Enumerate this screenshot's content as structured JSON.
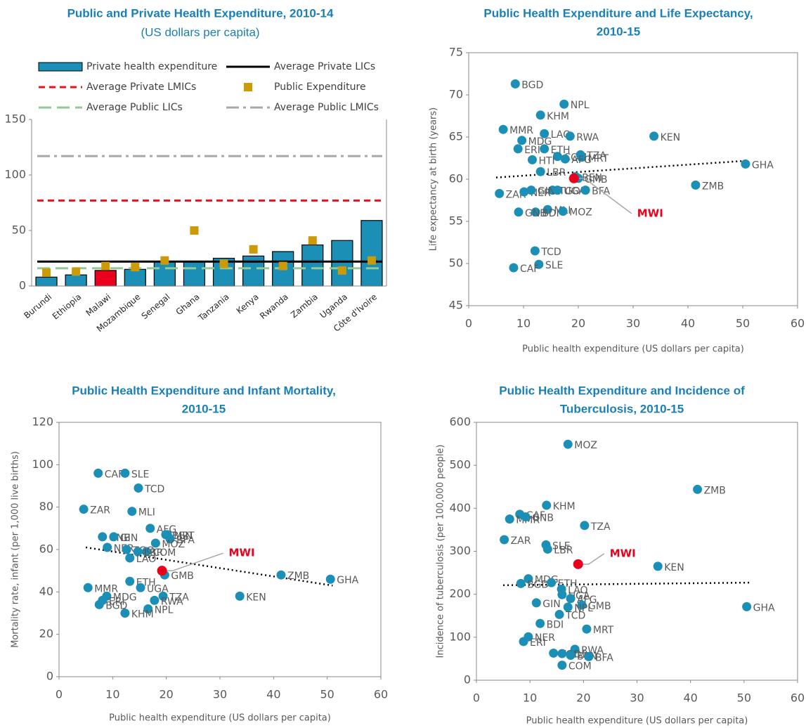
{
  "chart_data": [
    {
      "type": "bar",
      "title": "Public and Private Health Expenditure, 2010-14",
      "subtitle": "(US dollars per capita)",
      "categories": [
        "Burundi",
        "Ethiopia",
        "Malawi",
        "Mozambique",
        "Senegal",
        "Ghana",
        "Tanzania",
        "Kenya",
        "Rwanda",
        "Zambia",
        "Uganda",
        "Côte d'Ivoire"
      ],
      "series": [
        {
          "name": "Private health expenditure",
          "color": "#1b8fb5",
          "values": [
            8,
            10,
            14,
            15,
            22,
            22,
            25,
            27,
            31,
            37,
            41,
            59
          ],
          "colors": [
            "#1b8fb5",
            "#1b8fb5",
            "#e8001c",
            "#1b8fb5",
            "#1b8fb5",
            "#1b8fb5",
            "#1b8fb5",
            "#1b8fb5",
            "#1b8fb5",
            "#1b8fb5",
            "#1b8fb5",
            "#1b8fb5"
          ]
        },
        {
          "name": "Public Expenditure",
          "color": "#cc9a06",
          "marker": "square",
          "values": [
            12,
            13,
            18,
            17,
            23,
            50,
            20,
            33,
            18,
            41,
            14,
            23
          ]
        }
      ],
      "lines": [
        {
          "name": "Average Private LICs",
          "color": "#000000",
          "style": "solid",
          "value": 22
        },
        {
          "name": "Average Private LMICs",
          "color": "#e8141a",
          "style": "dashed",
          "value": 77
        },
        {
          "name": "Average Public LICs",
          "color": "#93c993",
          "style": "long-dash",
          "value": 16
        },
        {
          "name": "Average Public LMICs",
          "color": "#a8a8a8",
          "style": "dash-dot",
          "value": 117
        }
      ],
      "ylim": [
        0,
        150
      ],
      "yticks": [
        0,
        50,
        100,
        150
      ]
    },
    {
      "type": "scatter",
      "title": [
        "Public Health Expenditure and Life Expectancy,",
        "2010-15"
      ],
      "xlabel": "Public health expenditure (US dollars per capita)",
      "ylabel": "Life expectancy at birth (years)",
      "color": "#1b8fb5",
      "labels": [
        "BGD",
        "NPL",
        "KHM",
        "MMR",
        "LAO",
        "RWA",
        "KEN",
        "MDG",
        "ETH",
        "ERI",
        "COM",
        "TZA",
        "MRT",
        "AFG",
        "HTI",
        "GHA",
        "LBR",
        "BEN",
        "GMB",
        "ZMB",
        "TGO",
        "ZAR",
        "NER",
        "GIN",
        "UGA",
        "BFA",
        "MLI",
        "BDI",
        "GNB",
        "MOZ",
        "TCD",
        "SLE",
        "CAF"
      ],
      "x": [
        8.5,
        17.4,
        13.1,
        6.3,
        13.8,
        18.5,
        33.8,
        9.7,
        13.8,
        9.0,
        16.2,
        20.4,
        20.6,
        17.6,
        11.6,
        50.5,
        13.1,
        19.5,
        20.0,
        41.4,
        15.3,
        5.6,
        10.1,
        11.4,
        16.2,
        21.3,
        14.4,
        12.2,
        9.1,
        17.2,
        12.1,
        12.8,
        8.2
      ],
      "values": [
        71.3,
        68.9,
        67.6,
        65.9,
        65.4,
        65.1,
        65.1,
        64.6,
        63.6,
        63.6,
        62.7,
        62.9,
        62.6,
        62.4,
        62.3,
        61.8,
        60.9,
        60.3,
        60.1,
        59.3,
        58.7,
        58.3,
        58.5,
        58.7,
        58.7,
        58.7,
        56.4,
        56.1,
        56.1,
        56.2,
        51.5,
        49.9,
        49.5
      ],
      "highlight": {
        "label": "MWI",
        "x": 19.2,
        "value": 60.1,
        "color": "#e8001c"
      },
      "trend": {
        "x": [
          5,
          51
        ],
        "values": [
          60.2,
          62.2
        ],
        "color": "#000000"
      },
      "xlim": [
        0,
        60
      ],
      "xticks": [
        0,
        10,
        20,
        30,
        40,
        50,
        60
      ],
      "ylim": [
        45,
        75
      ],
      "yticks": [
        45,
        50,
        55,
        60,
        65,
        70,
        75
      ]
    },
    {
      "type": "scatter",
      "title": [
        "Public Health Expenditure and Infant Mortality,",
        "2010-15"
      ],
      "xlabel": "Public health expenditure (US dollars per capita)",
      "ylabel": "Mortality rate, infant (per 1,000 live births)",
      "color": "#1b8fb5",
      "labels": [
        "CAF",
        "SLE",
        "TCD",
        "ZAR",
        "MLI",
        "AFG",
        "BEN",
        "MRT",
        "BFA",
        "GNB",
        "GIN",
        "MOZ",
        "NER",
        "COM",
        "TGO",
        "LBR",
        "LAO",
        "ETH",
        "GMB",
        "UGA",
        "ZMB",
        "GHA",
        "KEN",
        "MMR",
        "MDG",
        "ERI",
        "BGD",
        "TZA",
        "RWA",
        "NPL",
        "KHM"
      ],
      "x": [
        7.3,
        12.3,
        14.8,
        4.6,
        13.6,
        17.0,
        19.9,
        20.2,
        20.7,
        8.1,
        10.2,
        18.0,
        9.0,
        16.3,
        12.6,
        14.7,
        13.2,
        13.2,
        19.7,
        15.2,
        41.4,
        50.6,
        33.7,
        5.4,
        8.9,
        8.1,
        7.5,
        19.4,
        17.8,
        16.6,
        12.3
      ],
      "values": [
        96,
        96,
        89,
        79,
        78,
        70,
        67,
        67,
        65,
        66,
        66,
        63,
        61,
        59,
        60,
        59,
        56,
        45,
        48,
        42,
        48,
        46,
        38,
        42,
        38,
        36,
        34,
        38,
        36,
        32,
        30
      ],
      "highlight": {
        "label": "MWI",
        "x": 19.2,
        "value": 50,
        "color": "#e8001c"
      },
      "trend": {
        "x": [
          5,
          51
        ],
        "values": [
          61,
          43
        ],
        "color": "#000000"
      },
      "xlim": [
        0,
        60
      ],
      "xticks": [
        0,
        10,
        20,
        30,
        40,
        50,
        60
      ],
      "ylim": [
        0,
        120
      ],
      "yticks": [
        0,
        20,
        40,
        60,
        80,
        100,
        120
      ]
    },
    {
      "type": "scatter",
      "title": [
        "Public Health Expenditure and Incidence of",
        "Tuberculosis, 2010-15"
      ],
      "xlabel": "Public health expenditure (US dollars per capita)",
      "ylabel": "Incidence of tuberculosis (per 100,000 people)",
      "color": "#1b8fb5",
      "labels": [
        "MOZ",
        "ZMB",
        "KHM",
        "CAF",
        "MMR",
        "GNB",
        "TZA",
        "ZAR",
        "SLE",
        "LBR",
        "KEN",
        "MDG",
        "BGD",
        "ETH",
        "LAO",
        "UGA",
        "AFG",
        "GIN",
        "GMB",
        "NPL",
        "TCD",
        "GHA",
        "BDI",
        "MRT",
        "NER",
        "ERI",
        "RWA",
        "TGO",
        "MLI",
        "BEN",
        "BFA",
        "COM"
      ],
      "x": [
        17.1,
        41.3,
        13.1,
        8.1,
        6.2,
        9.2,
        20.2,
        5.2,
        13.0,
        13.3,
        33.9,
        9.7,
        8.3,
        14.0,
        15.9,
        16.0,
        17.6,
        11.2,
        19.7,
        17.1,
        15.5,
        50.5,
        11.9,
        20.6,
        9.7,
        8.8,
        18.4,
        14.4,
        16.0,
        17.6,
        21.0,
        16.0
      ],
      "values": [
        549,
        444,
        407,
        386,
        375,
        380,
        360,
        327,
        315,
        305,
        265,
        236,
        225,
        227,
        212,
        199,
        190,
        180,
        175,
        170,
        153,
        171,
        132,
        119,
        101,
        90,
        72,
        63,
        62,
        58,
        55,
        35
      ],
      "highlight": {
        "label": "MWI",
        "x": 19.0,
        "value": 270,
        "color": "#e8001c"
      },
      "trend": {
        "x": [
          5,
          51
        ],
        "values": [
          221,
          227
        ],
        "color": "#000000"
      },
      "xlim": [
        0,
        60
      ],
      "xticks": [
        0,
        10,
        20,
        30,
        40,
        50,
        60
      ],
      "ylim": [
        0,
        600
      ],
      "yticks": [
        0,
        100,
        200,
        300,
        400,
        500,
        600
      ]
    }
  ]
}
